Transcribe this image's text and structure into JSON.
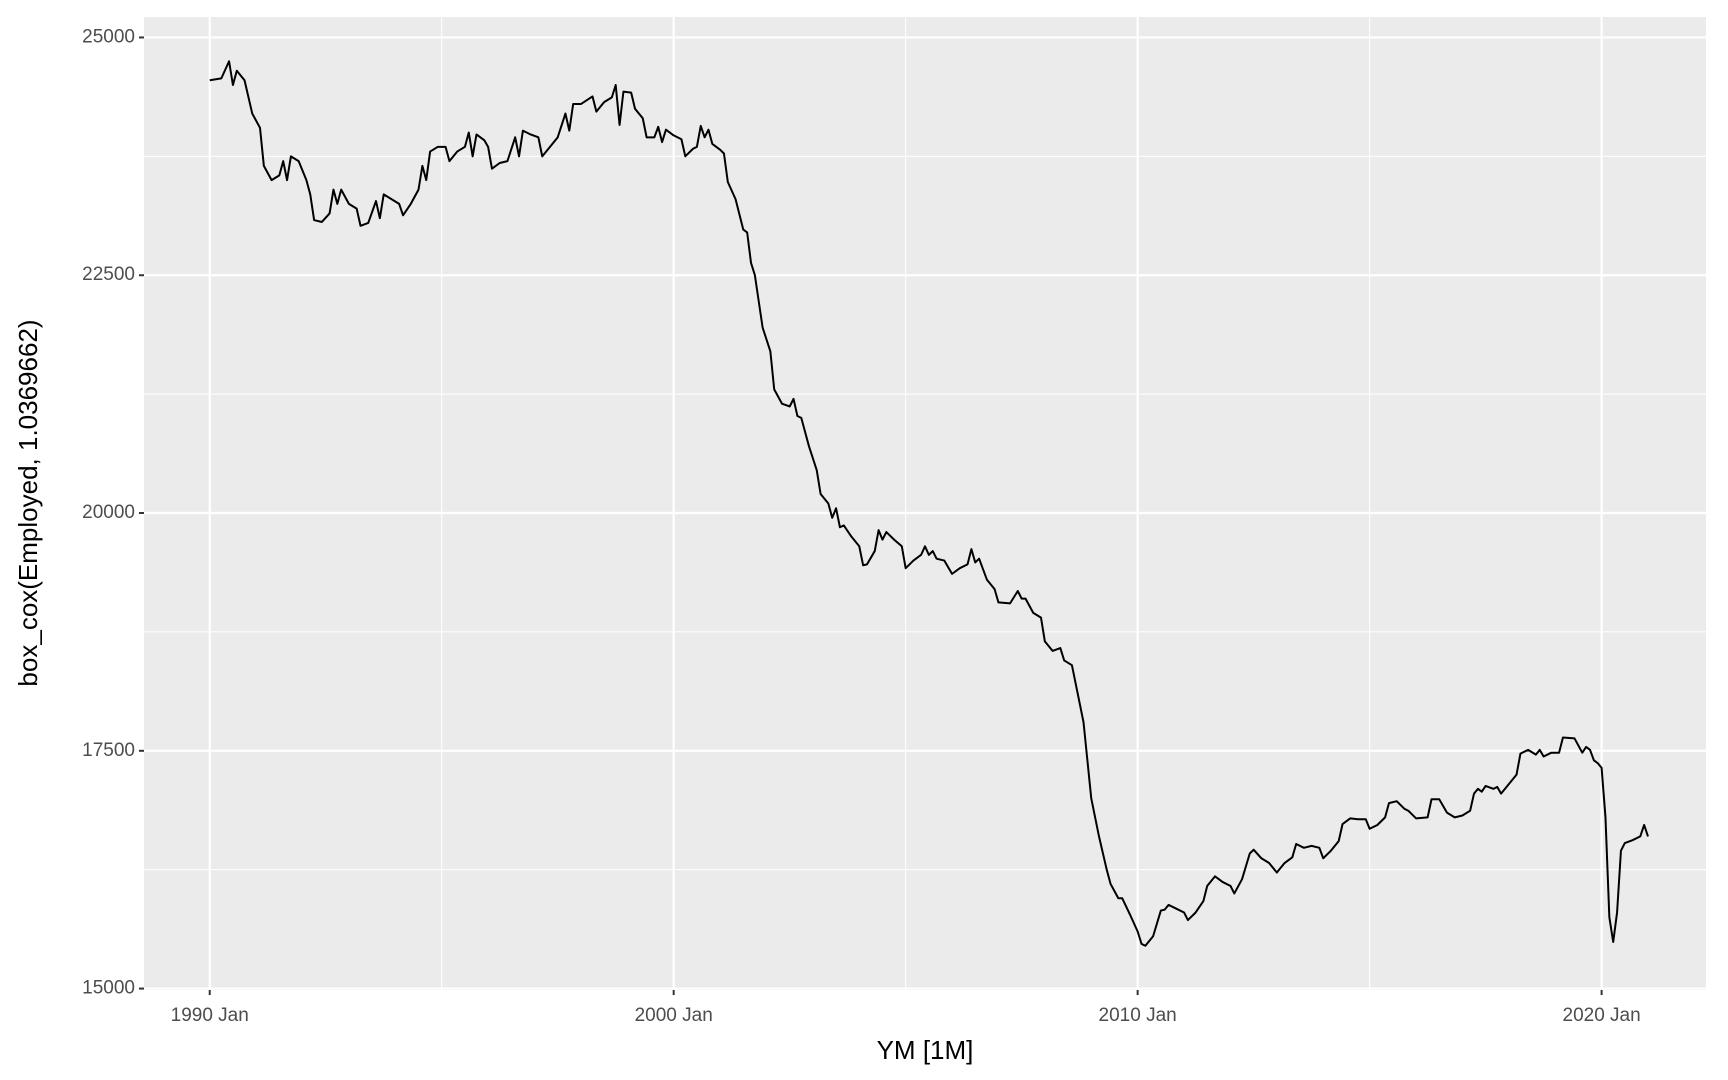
{
  "chart_data": {
    "type": "line",
    "x_label": "YM [1M]",
    "y_label": "box_cox(Employed, 1.0369662)",
    "x": [
      "1990 Jan",
      "1990 Apr",
      "1990 Jun",
      "1990 Jul",
      "1990 Aug",
      "1990 Oct",
      "1990 Dec",
      "1991 Feb",
      "1991 Mar",
      "1991 May",
      "1991 Jul",
      "1991 Aug",
      "1991 Sep",
      "1991 Oct",
      "1991 Dec",
      "1992 Feb",
      "1992 Mar",
      "1992 Apr",
      "1992 Jun",
      "1992 Aug",
      "1992 Sep",
      "1992 Oct",
      "1992 Nov",
      "1993 Jan",
      "1993 Mar",
      "1993 Apr",
      "1993 Jun",
      "1993 Aug",
      "1993 Sep",
      "1993 Oct",
      "1993 Dec",
      "1994 Feb",
      "1994 Mar",
      "1994 May",
      "1994 Jul",
      "1994 Aug",
      "1994 Sep",
      "1994 Oct",
      "1994 Dec",
      "1995 Feb",
      "1995 Mar",
      "1995 May",
      "1995 Jul",
      "1995 Aug",
      "1995 Sep",
      "1995 Oct",
      "1995 Dec",
      "1996 Jan",
      "1996 Feb",
      "1996 Apr",
      "1996 Jun",
      "1996 Aug",
      "1996 Sep",
      "1996 Oct",
      "1996 Dec",
      "1997 Feb",
      "1997 Mar",
      "1997 May",
      "1997 Jul",
      "1997 Sep",
      "1997 Oct",
      "1997 Nov",
      "1998 Jan",
      "1998 Apr",
      "1998 May",
      "1998 Jul",
      "1998 Sep",
      "1998 Oct",
      "1998 Nov",
      "1998 Dec",
      "1999 Feb",
      "1999 Mar",
      "1999 May",
      "1999 Jun",
      "1999 Aug",
      "1999 Sep",
      "1999 Oct",
      "1999 Nov",
      "2000 Jan",
      "2000 Mar",
      "2000 Apr",
      "2000 Jun",
      "2000 Jul",
      "2000 Aug",
      "2000 Sep",
      "2000 Oct",
      "2000 Nov",
      "2001 Jan",
      "2001 Feb",
      "2001 Mar",
      "2001 May",
      "2001 Jul",
      "2001 Aug",
      "2001 Sep",
      "2001 Oct",
      "2001 Dec",
      "2002 Feb",
      "2002 Mar",
      "2002 May",
      "2002 Jul",
      "2002 Aug",
      "2002 Sep",
      "2002 Oct",
      "2002 Dec",
      "2003 Feb",
      "2003 Mar",
      "2003 May",
      "2003 Jun",
      "2003 Jul",
      "2003 Aug",
      "2003 Sep",
      "2003 Nov",
      "2004 Jan",
      "2004 Feb",
      "2004 Mar",
      "2004 May",
      "2004 Jun",
      "2004 Jul",
      "2004 Aug",
      "2004 Oct",
      "2004 Dec",
      "2005 Jan",
      "2005 Mar",
      "2005 May",
      "2005 Jun",
      "2005 Jul",
      "2005 Aug",
      "2005 Sep",
      "2005 Nov",
      "2006 Jan",
      "2006 Mar",
      "2006 May",
      "2006 Jun",
      "2006 Jul",
      "2006 Aug",
      "2006 Oct",
      "2006 Dec",
      "2007 Jan",
      "2007 Apr",
      "2007 Jun",
      "2007 Jul",
      "2007 Aug",
      "2007 Oct",
      "2007 Dec",
      "2008 Jan",
      "2008 Mar",
      "2008 May",
      "2008 Jun",
      "2008 Aug",
      "2008 Sep",
      "2008 Nov",
      "2008 Dec",
      "2009 Jan",
      "2009 Mar",
      "2009 May",
      "2009 Jun",
      "2009 Aug",
      "2009 Sep",
      "2009 Nov",
      "2010 Jan",
      "2010 Feb",
      "2010 Mar",
      "2010 May",
      "2010 Jul",
      "2010 Aug",
      "2010 Sep",
      "2010 Nov",
      "2011 Jan",
      "2011 Feb",
      "2011 Apr",
      "2011 Jun",
      "2011 Jul",
      "2011 Sep",
      "2011 Nov",
      "2012 Jan",
      "2012 Feb",
      "2012 Apr",
      "2012 Jun",
      "2012 Jul",
      "2012 Sep",
      "2012 Nov",
      "2013 Jan",
      "2013 Mar",
      "2013 May",
      "2013 Jun",
      "2013 Aug",
      "2013 Oct",
      "2013 Dec",
      "2014 Jan",
      "2014 Mar",
      "2014 May",
      "2014 Jun",
      "2014 Aug",
      "2014 Oct",
      "2014 Dec",
      "2015 Jan",
      "2015 Mar",
      "2015 May",
      "2015 Jun",
      "2015 Aug",
      "2015 Oct",
      "2015 Nov",
      "2016 Jan",
      "2016 Apr",
      "2016 May",
      "2016 Jul",
      "2016 Sep",
      "2016 Nov",
      "2017 Jan",
      "2017 Mar",
      "2017 Apr",
      "2017 May",
      "2017 Jun",
      "2017 Jul",
      "2017 Sep",
      "2017 Oct",
      "2017 Nov",
      "2018 Jan",
      "2018 Mar",
      "2018 Apr",
      "2018 Jun",
      "2018 Aug",
      "2018 Sep",
      "2018 Oct",
      "2018 Dec",
      "2019 Feb",
      "2019 Mar",
      "2019 Jun",
      "2019 Aug",
      "2019 Sep",
      "2019 Oct",
      "2019 Nov",
      "2019 Dec",
      "2020 Jan",
      "2020 Feb",
      "2020 Mar",
      "2020 Apr",
      "2020 May",
      "2020 Jun",
      "2020 Jul",
      "2020 Sep",
      "2020 Nov",
      "2020 Dec",
      "2021 Jan"
    ],
    "values": [
      24550,
      24570,
      24750,
      24500,
      24650,
      24550,
      24200,
      24050,
      23650,
      23500,
      23550,
      23700,
      23500,
      23750,
      23700,
      23500,
      23350,
      23080,
      23060,
      23150,
      23400,
      23250,
      23400,
      23250,
      23200,
      23020,
      23050,
      23280,
      23100,
      23350,
      23300,
      23250,
      23130,
      23250,
      23400,
      23650,
      23500,
      23800,
      23850,
      23850,
      23700,
      23800,
      23850,
      24000,
      23750,
      23980,
      23920,
      23850,
      23620,
      23680,
      23700,
      23950,
      23750,
      24020,
      23980,
      23950,
      23750,
      23850,
      23950,
      24200,
      24020,
      24300,
      24300,
      24380,
      24220,
      24320,
      24370,
      24500,
      24080,
      24430,
      24420,
      24250,
      24150,
      23950,
      23950,
      24060,
      23900,
      24030,
      23970,
      23930,
      23750,
      23830,
      23850,
      24070,
      23950,
      24030,
      23880,
      23820,
      23780,
      23480,
      23300,
      22980,
      22950,
      22630,
      22500,
      21950,
      21700,
      21300,
      21150,
      21120,
      21200,
      21020,
      21000,
      20700,
      20450,
      20200,
      20100,
      19950,
      20050,
      19850,
      19870,
      19750,
      19650,
      19450,
      19460,
      19600,
      19820,
      19720,
      19800,
      19720,
      19650,
      19420,
      19500,
      19560,
      19650,
      19560,
      19600,
      19520,
      19500,
      19360,
      19420,
      19460,
      19620,
      19480,
      19520,
      19300,
      19200,
      19060,
      19050,
      19180,
      19100,
      19100,
      18950,
      18900,
      18650,
      18550,
      18580,
      18450,
      18400,
      18200,
      17800,
      17400,
      17000,
      16600,
      16250,
      16100,
      15950,
      15950,
      15780,
      15600,
      15470,
      15450,
      15550,
      15820,
      15830,
      15880,
      15840,
      15800,
      15720,
      15800,
      15920,
      16080,
      16180,
      16120,
      16080,
      16000,
      16150,
      16420,
      16460,
      16370,
      16320,
      16220,
      16320,
      16380,
      16520,
      16480,
      16500,
      16480,
      16370,
      16450,
      16550,
      16730,
      16790,
      16780,
      16780,
      16680,
      16720,
      16800,
      16950,
      16970,
      16890,
      16870,
      16790,
      16800,
      16990,
      16990,
      16850,
      16800,
      16820,
      16870,
      17050,
      17100,
      17070,
      17130,
      17100,
      17120,
      17050,
      17150,
      17250,
      17470,
      17510,
      17460,
      17510,
      17440,
      17480,
      17480,
      17640,
      17630,
      17480,
      17540,
      17510,
      17400,
      17370,
      17320,
      16800,
      15750,
      15490,
      15800,
      16450,
      16530,
      16560,
      16600,
      16720,
      16600
    ],
    "color": "#000000",
    "xlim": [
      "1988 Aug",
      "2022 Apr"
    ],
    "xticks": [
      "1990 Jan",
      "2000 Jan",
      "2010 Jan",
      "2020 Jan"
    ],
    "minor_xticks": [
      "1995 Jan",
      "2005 Jan",
      "2015 Jan"
    ],
    "ylim": [
      14985,
      25215
    ],
    "yticks": [
      15000,
      17500,
      20000,
      22500,
      25000
    ],
    "minor_yticks": [
      16250,
      18750,
      21250,
      23750
    ],
    "grid": true,
    "panel_color": "#ebebeb"
  }
}
